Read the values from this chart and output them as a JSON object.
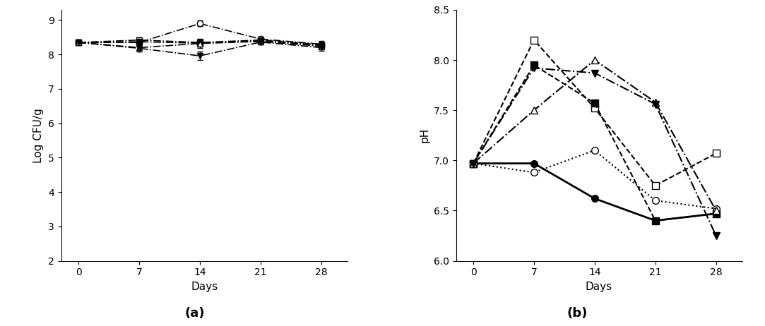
{
  "days": [
    0,
    7,
    14,
    21,
    28
  ],
  "cfu_series": [
    {
      "y": [
        8.35,
        8.35,
        8.9,
        8.45,
        8.3
      ],
      "yerr": [
        0.04,
        0.12,
        0.08,
        0.07,
        0.09
      ],
      "marker": "o",
      "fillstyle": "none",
      "linestyle": "-.",
      "lw": 1.2
    },
    {
      "y": [
        8.35,
        8.42,
        8.35,
        8.42,
        8.28
      ],
      "yerr": [
        0.04,
        0.08,
        0.09,
        0.06,
        0.08
      ],
      "marker": "s",
      "fillstyle": "none",
      "linestyle": "-.",
      "lw": 1.2
    },
    {
      "y": [
        8.35,
        8.37,
        8.33,
        8.4,
        8.27
      ],
      "yerr": [
        0.04,
        0.1,
        0.1,
        0.07,
        0.07
      ],
      "marker": "s",
      "fillstyle": "full",
      "linestyle": "-.",
      "lw": 1.2
    },
    {
      "y": [
        8.35,
        8.2,
        8.32,
        8.38,
        8.24
      ],
      "yerr": [
        0.04,
        0.11,
        0.13,
        0.07,
        0.08
      ],
      "marker": "^",
      "fillstyle": "none",
      "linestyle": "-.",
      "lw": 1.2
    },
    {
      "y": [
        8.35,
        8.18,
        7.96,
        8.36,
        8.2
      ],
      "yerr": [
        0.04,
        0.1,
        0.13,
        0.07,
        0.09
      ],
      "marker": "v",
      "fillstyle": "full",
      "linestyle": "-.",
      "lw": 1.2
    }
  ],
  "ph_series": [
    {
      "y": [
        6.97,
        8.2,
        7.52,
        6.75,
        7.07
      ],
      "marker": "s",
      "fillstyle": "none",
      "linestyle": "--",
      "lw": 1.5,
      "ms": 7
    },
    {
      "y": [
        6.97,
        7.95,
        7.57,
        6.4,
        6.47
      ],
      "marker": "s",
      "fillstyle": "full",
      "linestyle": "--",
      "lw": 1.5,
      "ms": 7
    },
    {
      "y": [
        6.97,
        6.97,
        6.62,
        6.4,
        6.47
      ],
      "marker": "o",
      "fillstyle": "full",
      "linestyle": "-",
      "lw": 2.0,
      "ms": 7
    },
    {
      "y": [
        6.97,
        6.88,
        7.1,
        6.6,
        6.52
      ],
      "marker": "o",
      "fillstyle": "none",
      "linestyle": ":",
      "lw": 1.5,
      "ms": 7
    },
    {
      "y": [
        6.97,
        7.5,
        8.0,
        7.58,
        6.5
      ],
      "marker": "^",
      "fillstyle": "none",
      "linestyle": "-.",
      "lw": 1.5,
      "ms": 7
    },
    {
      "y": [
        6.97,
        7.92,
        7.87,
        7.56,
        6.25
      ],
      "marker": "v",
      "fillstyle": "full",
      "linestyle": "-.",
      "lw": 1.5,
      "ms": 7
    }
  ],
  "cfu_ylabel": "Log CFU/g",
  "ph_ylabel": "pH",
  "xlabel": "Days",
  "cfu_ylim": [
    2,
    9.3
  ],
  "cfu_yticks": [
    2,
    3,
    4,
    5,
    6,
    7,
    8,
    9
  ],
  "ph_ylim": [
    6.0,
    8.5
  ],
  "ph_yticks": [
    6.0,
    6.5,
    7.0,
    7.5,
    8.0,
    8.5
  ],
  "xticks": [
    0,
    7,
    14,
    21,
    28
  ],
  "label_a": "(a)",
  "label_b": "(b)",
  "capsize": 3,
  "cfu_ms": 6
}
